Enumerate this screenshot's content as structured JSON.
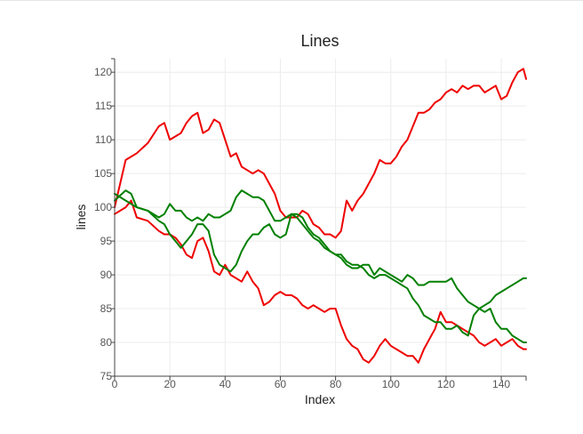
{
  "chart_data": {
    "type": "line",
    "title": "Lines",
    "xlabel": "Index",
    "ylabel": "lines",
    "xlim": [
      0,
      149
    ],
    "ylim": [
      75,
      122
    ],
    "x_ticks": [
      0,
      20,
      40,
      60,
      80,
      100,
      120,
      140
    ],
    "y_ticks": [
      75,
      80,
      85,
      90,
      95,
      100,
      105,
      110,
      115,
      120
    ],
    "grid": true,
    "legend": false,
    "x": [
      0,
      4,
      6,
      8,
      12,
      16,
      18,
      20,
      22,
      24,
      26,
      28,
      30,
      32,
      34,
      36,
      38,
      40,
      42,
      44,
      46,
      48,
      50,
      52,
      54,
      56,
      58,
      60,
      62,
      64,
      66,
      68,
      70,
      72,
      74,
      76,
      78,
      80,
      82,
      84,
      86,
      88,
      90,
      92,
      94,
      96,
      98,
      100,
      102,
      104,
      106,
      108,
      110,
      112,
      114,
      116,
      118,
      120,
      122,
      124,
      126,
      128,
      130,
      132,
      134,
      136,
      138,
      140,
      142,
      144,
      146,
      148,
      149
    ],
    "series": [
      {
        "color": "#ee0000",
        "values": [
          100,
          107,
          107.5,
          108,
          109.5,
          112,
          112.5,
          110,
          110.5,
          111,
          112.5,
          113.5,
          114,
          111,
          111.5,
          113,
          112.5,
          110,
          107.5,
          108,
          106,
          105.5,
          105,
          105.5,
          105,
          103.5,
          102,
          99.5,
          98.5,
          98.5,
          98.5,
          99.5,
          99,
          97.5,
          97,
          96,
          96,
          95.5,
          96.5,
          101,
          99.5,
          101,
          102,
          103.5,
          105,
          107,
          106.5,
          106.5,
          107.5,
          109,
          110,
          112,
          114,
          114,
          114.5,
          115.5,
          116,
          117,
          117.5,
          117,
          118,
          117.5,
          118,
          118,
          117,
          117.5,
          118,
          116,
          116.5,
          118.5,
          120,
          120.5,
          119
        ]
      },
      {
        "color": "#ee0000",
        "values": [
          99,
          100,
          101,
          98.5,
          98,
          96.5,
          96,
          96,
          95.5,
          94.5,
          93,
          92.5,
          95,
          95.5,
          93.5,
          90.5,
          90,
          91.5,
          90,
          89.5,
          89,
          90.5,
          89,
          88,
          85.5,
          86,
          87,
          87.5,
          87,
          87,
          86.5,
          85.5,
          85,
          85.5,
          85,
          84.5,
          85,
          85,
          82.5,
          80.5,
          79.5,
          79,
          77.5,
          77,
          78,
          79.5,
          80.5,
          79.5,
          79,
          78.5,
          78,
          78,
          77,
          79,
          80.5,
          82,
          84.5,
          83,
          83,
          82.5,
          82,
          81.5,
          81,
          80,
          79.5,
          80,
          80.5,
          79.5,
          80,
          80.5,
          79.5,
          79,
          79
        ]
      },
      {
        "color": "#008000",
        "values": [
          101,
          102.5,
          102,
          100,
          99.5,
          98.5,
          99,
          100.5,
          99.5,
          99.5,
          98.5,
          98,
          98.5,
          98,
          99,
          98.5,
          98.5,
          99,
          99.5,
          101.5,
          102.5,
          102,
          101.5,
          101.5,
          101,
          99.5,
          98,
          98,
          98.5,
          99,
          98.5,
          97.5,
          96.5,
          95.5,
          95,
          94,
          93.5,
          93,
          92.5,
          91.5,
          91,
          91,
          91.5,
          91.5,
          90,
          91,
          90.5,
          90,
          89.5,
          89,
          90,
          89.5,
          88.5,
          88.5,
          89,
          89,
          89,
          89,
          89.5,
          88,
          87,
          86,
          85.5,
          85,
          85.5,
          86,
          87,
          87.5,
          88,
          88.5,
          89,
          89.5,
          89.5
        ]
      },
      {
        "color": "#008000",
        "values": [
          102,
          101,
          100.5,
          100,
          99.5,
          98,
          97.5,
          96,
          95,
          94,
          95,
          96,
          97.5,
          97.5,
          96.5,
          93,
          91.5,
          91,
          90.5,
          91.5,
          93.5,
          95,
          96,
          96,
          97,
          97.5,
          96,
          95.5,
          96,
          99,
          99,
          98.5,
          97,
          96,
          95.5,
          94.5,
          93.5,
          93,
          93,
          92,
          91.5,
          91.5,
          91,
          90,
          89.5,
          90,
          90,
          89.5,
          89,
          88.5,
          88,
          86.5,
          85.5,
          84,
          83.5,
          83,
          83,
          82,
          82,
          82.5,
          81.5,
          81,
          84,
          85,
          84.5,
          85,
          83,
          82,
          82,
          81,
          80.5,
          80,
          80
        ]
      }
    ]
  }
}
